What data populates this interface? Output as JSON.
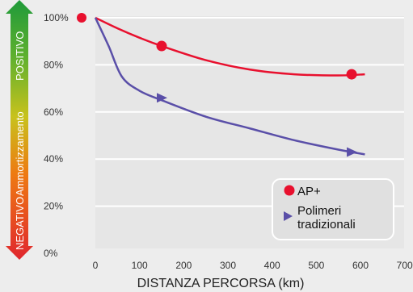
{
  "chart_data": {
    "type": "line",
    "xlabel": "DISTANZA PERCORSA (km)",
    "ylabel": {
      "negative": "NEGATIVO",
      "middle": "Ammortizzamento",
      "positive": "POSITIVO"
    },
    "x_ticks": [
      "0",
      "100",
      "200",
      "300",
      "400",
      "500",
      "600",
      "700"
    ],
    "y_ticks": [
      "0%",
      "20%",
      "40%",
      "60%",
      "80%",
      "100%"
    ],
    "xlim": [
      0,
      700
    ],
    "ylim": [
      0,
      100
    ],
    "grid": true,
    "legend_position": "bottom-right",
    "series": [
      {
        "name": "AP+",
        "color": "#e8102e",
        "marker": "circle",
        "line": [
          [
            0,
            100
          ],
          [
            50,
            95.5
          ],
          [
            100,
            91.5
          ],
          [
            150,
            88
          ],
          [
            250,
            82
          ],
          [
            350,
            78
          ],
          [
            450,
            76
          ],
          [
            550,
            75.5
          ],
          [
            610,
            76
          ]
        ],
        "marker_points": [
          [
            150,
            88
          ],
          [
            580,
            76
          ]
        ]
      },
      {
        "name": "Polimeri tradizionali",
        "color": "#5a4fa8",
        "marker": "triangle",
        "line": [
          [
            0,
            100
          ],
          [
            30,
            88
          ],
          [
            60,
            75
          ],
          [
            100,
            69
          ],
          [
            150,
            65
          ],
          [
            250,
            58
          ],
          [
            350,
            53
          ],
          [
            450,
            48
          ],
          [
            550,
            44
          ],
          [
            610,
            42
          ]
        ],
        "marker_points": [
          [
            150,
            66
          ],
          [
            580,
            43
          ]
        ]
      }
    ],
    "outlier_point": {
      "color": "#e8102e"
    }
  }
}
